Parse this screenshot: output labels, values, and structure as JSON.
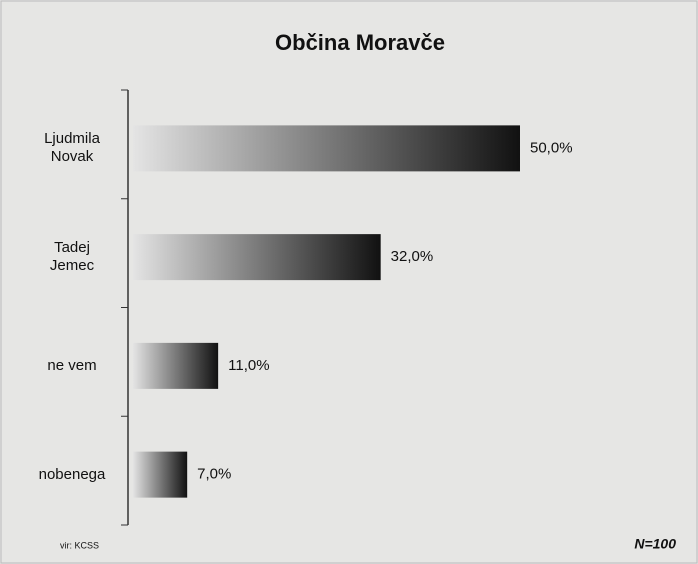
{
  "chart_data": {
    "type": "bar",
    "orientation": "horizontal",
    "title": "Občina Moravče",
    "categories": [
      "Ljudmila Novak",
      "Tadej Jemec",
      "ne vem",
      "nobenega"
    ],
    "values": [
      50,
      32,
      11,
      7
    ],
    "value_labels": [
      "50,0%",
      "32,0%",
      "11,0%",
      "7,0%"
    ],
    "source": "vir: KCSS",
    "note": "N=100"
  }
}
